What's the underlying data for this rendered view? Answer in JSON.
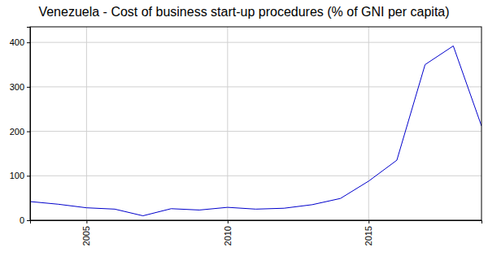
{
  "chart_data": {
    "type": "line",
    "title": "Venezuela - Cost of business start-up procedures (% of GNI per capita)",
    "x": [
      2003,
      2004,
      2005,
      2006,
      2007,
      2008,
      2009,
      2010,
      2011,
      2012,
      2013,
      2014,
      2015,
      2016,
      2017,
      2018,
      2019
    ],
    "values": [
      42,
      36,
      28,
      25,
      10,
      26,
      23,
      29,
      25,
      27,
      35,
      49,
      88,
      135,
      350,
      392,
      212
    ],
    "color": "#0000cc",
    "xlim": [
      2003,
      2019
    ],
    "xticks": [
      2005,
      2010,
      2015
    ],
    "ylim": [
      0,
      435
    ],
    "yticks": [
      0,
      100,
      200,
      300,
      400
    ],
    "grid": true
  }
}
